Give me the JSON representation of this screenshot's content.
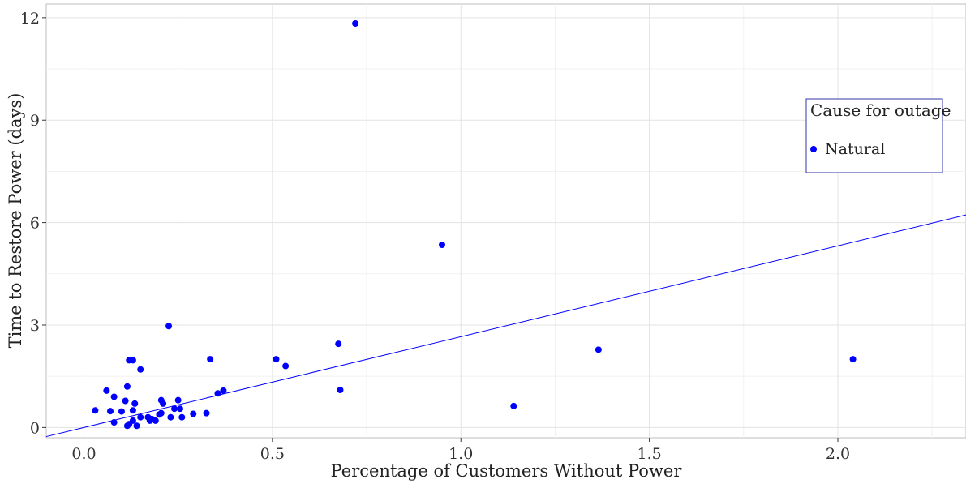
{
  "chart_data": {
    "type": "scatter",
    "xlabel": "Percentage of Customers Without Power",
    "ylabel": "Time to Restore Power (days)",
    "xlim": [
      -0.1,
      2.34
    ],
    "ylim": [
      -0.3,
      12.4
    ],
    "x_ticks": [
      {
        "value": 0.0,
        "label": "0.0"
      },
      {
        "value": 0.5,
        "label": "0.5"
      },
      {
        "value": 1.0,
        "label": "1.0"
      },
      {
        "value": 1.5,
        "label": "1.5"
      },
      {
        "value": 2.0,
        "label": "2.0"
      }
    ],
    "y_ticks": [
      {
        "value": 0,
        "label": "0"
      },
      {
        "value": 3,
        "label": "3"
      },
      {
        "value": 6,
        "label": "6"
      },
      {
        "value": 9,
        "label": "9"
      },
      {
        "value": 12,
        "label": "12"
      }
    ],
    "grid": true,
    "legend": {
      "title": "Cause for outage",
      "position": "right",
      "entries": [
        {
          "label": "Natural",
          "color": "#0000ff"
        }
      ]
    },
    "series": [
      {
        "name": "Natural",
        "color": "#0000ff",
        "points": [
          {
            "x": 0.03,
            "y": 0.5
          },
          {
            "x": 0.06,
            "y": 1.08
          },
          {
            "x": 0.07,
            "y": 0.48
          },
          {
            "x": 0.08,
            "y": 0.9
          },
          {
            "x": 0.08,
            "y": 0.15
          },
          {
            "x": 0.1,
            "y": 0.47
          },
          {
            "x": 0.11,
            "y": 0.78
          },
          {
            "x": 0.115,
            "y": 1.2
          },
          {
            "x": 0.115,
            "y": 0.05
          },
          {
            "x": 0.12,
            "y": 1.97
          },
          {
            "x": 0.125,
            "y": 1.98
          },
          {
            "x": 0.13,
            "y": 1.97
          },
          {
            "x": 0.12,
            "y": 0.1
          },
          {
            "x": 0.13,
            "y": 0.2
          },
          {
            "x": 0.13,
            "y": 0.5
          },
          {
            "x": 0.135,
            "y": 0.7
          },
          {
            "x": 0.14,
            "y": 0.05
          },
          {
            "x": 0.15,
            "y": 0.3
          },
          {
            "x": 0.15,
            "y": 1.7
          },
          {
            "x": 0.17,
            "y": 0.3
          },
          {
            "x": 0.175,
            "y": 0.2
          },
          {
            "x": 0.18,
            "y": 0.25
          },
          {
            "x": 0.19,
            "y": 0.2
          },
          {
            "x": 0.2,
            "y": 0.38
          },
          {
            "x": 0.205,
            "y": 0.42
          },
          {
            "x": 0.205,
            "y": 0.8
          },
          {
            "x": 0.21,
            "y": 0.7
          },
          {
            "x": 0.225,
            "y": 2.97
          },
          {
            "x": 0.23,
            "y": 0.3
          },
          {
            "x": 0.24,
            "y": 0.55
          },
          {
            "x": 0.25,
            "y": 0.8
          },
          {
            "x": 0.255,
            "y": 0.55
          },
          {
            "x": 0.26,
            "y": 0.3
          },
          {
            "x": 0.29,
            "y": 0.4
          },
          {
            "x": 0.325,
            "y": 0.42
          },
          {
            "x": 0.335,
            "y": 2.0
          },
          {
            "x": 0.355,
            "y": 1.0
          },
          {
            "x": 0.37,
            "y": 1.08
          },
          {
            "x": 0.51,
            "y": 2.0
          },
          {
            "x": 0.535,
            "y": 1.8
          },
          {
            "x": 0.675,
            "y": 2.45
          },
          {
            "x": 0.68,
            "y": 1.1
          },
          {
            "x": 0.72,
            "y": 11.83
          },
          {
            "x": 0.95,
            "y": 5.35
          },
          {
            "x": 1.14,
            "y": 0.63
          },
          {
            "x": 1.365,
            "y": 2.28
          },
          {
            "x": 2.04,
            "y": 2.0
          }
        ]
      }
    ],
    "trend_line": {
      "color": "#0000ff",
      "intercept": 0.0,
      "slope": 2.66
    }
  }
}
